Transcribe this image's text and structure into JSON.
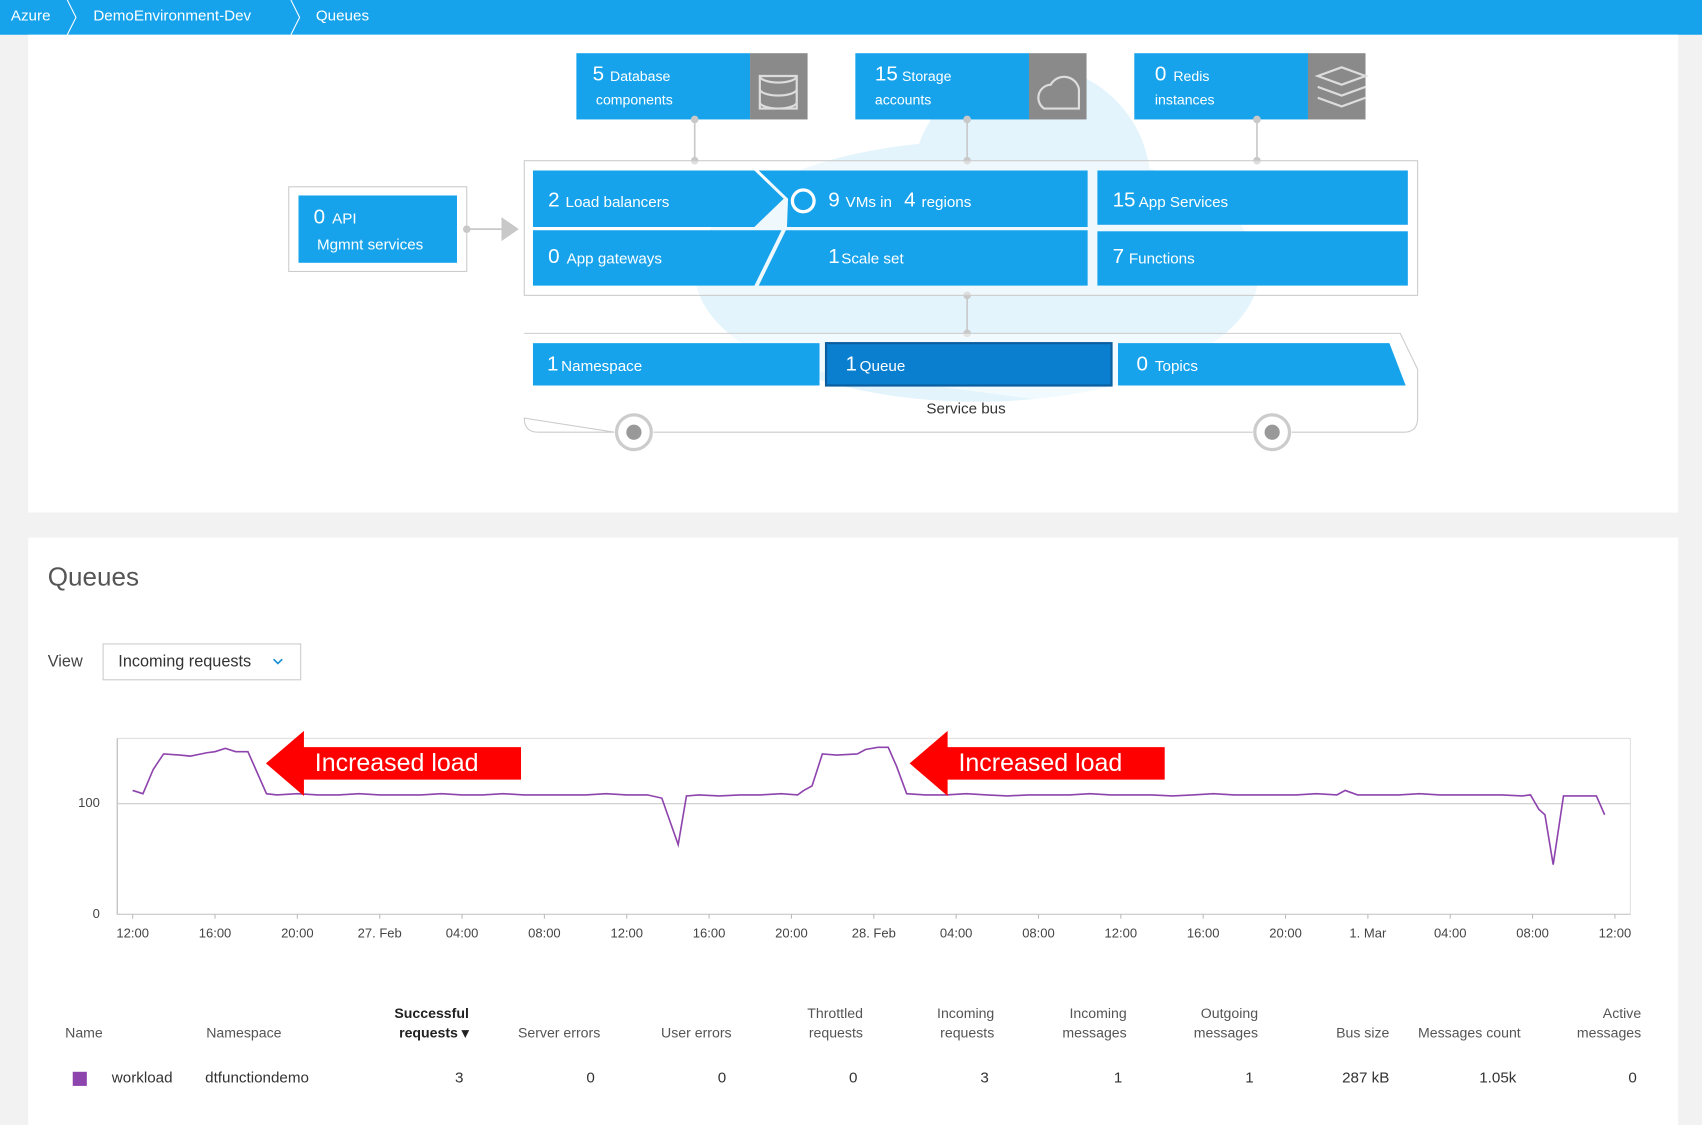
{
  "breadcrumb": [
    "Azure",
    "DemoEnvironment-Dev",
    "Queues"
  ],
  "topology": {
    "database": {
      "num": "5",
      "lines": [
        "Database",
        "components"
      ]
    },
    "storage": {
      "num": "15",
      "lines": [
        "Storage",
        "accounts"
      ]
    },
    "redis": {
      "num": "0",
      "lines": [
        "Redis",
        "instances"
      ]
    },
    "api": {
      "num": "0",
      "lines": [
        "API",
        "Mgmnt services"
      ]
    },
    "load_balancers": {
      "num": "2",
      "label": "Load balancers"
    },
    "app_gateways": {
      "num": "0",
      "label": "App gateways"
    },
    "vms": {
      "num": "9",
      "label": "VMs in",
      "num2": "4",
      "label2": "regions"
    },
    "scale_set": {
      "num": "1",
      "label": "Scale set"
    },
    "app_services": {
      "num": "15",
      "label": "App Services"
    },
    "functions": {
      "num": "7",
      "label": "Functions"
    },
    "namespace": {
      "num": "1",
      "label": "Namespace"
    },
    "queue": {
      "num": "1",
      "label": "Queue"
    },
    "topics": {
      "num": "0",
      "label": "Topics"
    },
    "service_bus": "Service bus"
  },
  "queues": {
    "title": "Queues",
    "view_label": "View",
    "view_value": "Incoming requests",
    "table": {
      "columns": [
        [
          "Name"
        ],
        [
          "Namespace"
        ],
        [
          "Successful",
          "requests ▾"
        ],
        [
          "Server errors"
        ],
        [
          "User errors"
        ],
        [
          "Throttled",
          "requests"
        ],
        [
          "Incoming",
          "requests"
        ],
        [
          "Incoming",
          "messages"
        ],
        [
          "Outgoing",
          "messages"
        ],
        [
          "Bus size"
        ],
        [
          "Messages count"
        ],
        [
          "Active",
          "messages"
        ]
      ],
      "rows": [
        [
          "workload",
          "dtfunctiondemo",
          "3",
          "0",
          "0",
          "0",
          "3",
          "1",
          "1",
          "287 kB",
          "1.05k",
          "0"
        ]
      ]
    }
  },
  "chart_data": {
    "type": "line",
    "annotations": [
      "Increased load",
      "Increased load"
    ],
    "xlim": [
      -0.75,
      72.75
    ],
    "ylim": [
      0,
      159
    ],
    "yticks": [
      0,
      100
    ],
    "grid": true,
    "xticks": [
      {
        "value": 0,
        "label": "12:00"
      },
      {
        "value": 4,
        "label": "16:00"
      },
      {
        "value": 8,
        "label": "20:00"
      },
      {
        "value": 12,
        "label": "27. Feb"
      },
      {
        "value": 16,
        "label": "04:00"
      },
      {
        "value": 20,
        "label": "08:00"
      },
      {
        "value": 24,
        "label": "12:00"
      },
      {
        "value": 28,
        "label": "16:00"
      },
      {
        "value": 32,
        "label": "20:00"
      },
      {
        "value": 36,
        "label": "28. Feb"
      },
      {
        "value": 40,
        "label": "04:00"
      },
      {
        "value": 44,
        "label": "08:00"
      },
      {
        "value": 48,
        "label": "12:00"
      },
      {
        "value": 52,
        "label": "16:00"
      },
      {
        "value": 56,
        "label": "20:00"
      },
      {
        "value": 60,
        "label": "1. Mar"
      },
      {
        "value": 64,
        "label": "04:00"
      },
      {
        "value": 68,
        "label": "08:00"
      },
      {
        "value": 72,
        "label": "12:00"
      }
    ],
    "series": [
      {
        "name": "workload",
        "color": "#8e44ad",
        "x": [
          0,
          0.5,
          1,
          1.5,
          2.3,
          2.8,
          3.6,
          4,
          4.5,
          5,
          5.6,
          6.5,
          7,
          8,
          9,
          10,
          11,
          12,
          13,
          14,
          15,
          16,
          17,
          18,
          19,
          20,
          21,
          22,
          23,
          24,
          25,
          25.7,
          26.5,
          26.9,
          27.5,
          28.5,
          29.5,
          30.5,
          31.5,
          32.3,
          32.6,
          33,
          33.5,
          34.2,
          35.2,
          35.6,
          36.2,
          36.7,
          37.1,
          37.6,
          38.5,
          39.5,
          40.5,
          41.5,
          42.5,
          43.5,
          44.5,
          45.5,
          46.5,
          47.5,
          48.5,
          49.5,
          50.5,
          51.5,
          52.5,
          53.5,
          54.5,
          55.5,
          56.5,
          57.5,
          58.5,
          58.9,
          59.5,
          60.5,
          61.5,
          62.5,
          63.5,
          64.5,
          65.5,
          66.5,
          67.5,
          67.9,
          68.3,
          68.6,
          69,
          69.5,
          70.3,
          71.1,
          71.5
        ],
        "values": [
          112,
          109,
          131,
          145,
          144,
          143,
          146,
          147,
          150,
          147,
          147,
          109,
          108,
          109,
          108,
          108,
          109,
          108,
          108,
          108,
          109,
          108,
          108,
          109,
          108,
          108,
          108,
          108,
          109,
          108,
          108,
          105,
          63,
          107,
          108,
          107,
          108,
          108,
          109,
          108,
          112,
          116,
          145,
          144,
          145,
          149,
          151,
          151,
          134,
          109,
          108,
          108,
          109,
          108,
          107,
          108,
          108,
          108,
          109,
          108,
          108,
          108,
          107,
          108,
          109,
          108,
          108,
          108,
          108,
          109,
          108,
          112,
          108,
          108,
          108,
          109,
          108,
          108,
          108,
          108,
          107,
          108,
          95,
          90,
          45,
          107,
          107,
          107,
          90
        ]
      }
    ]
  }
}
